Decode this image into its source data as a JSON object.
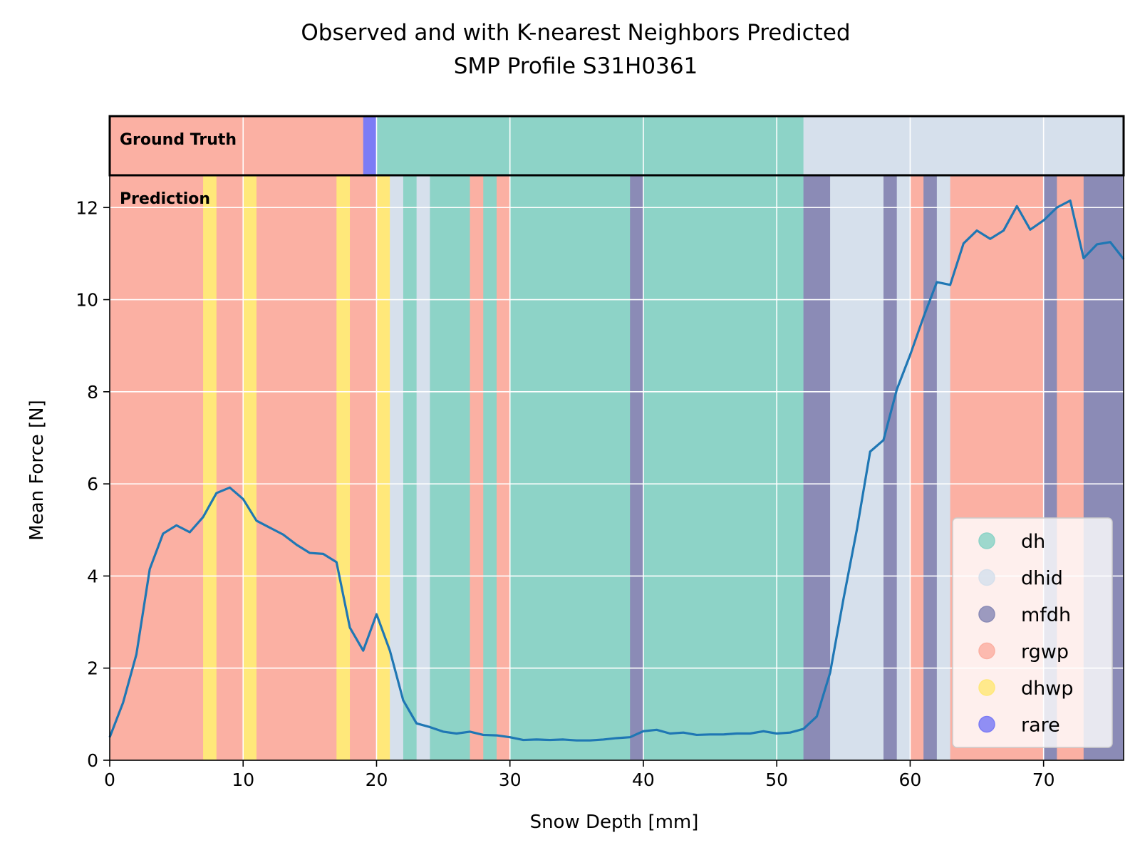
{
  "chart_data": {
    "type": "line",
    "title": "Observed and with K-nearest Neighbors Predicted",
    "subtitle": "SMP Profile S31H0361",
    "xlabel": "Snow Depth [mm]",
    "ylabel": "Mean Force [N]",
    "xlim": [
      0,
      76
    ],
    "ylim": [
      0,
      12.7
    ],
    "xticks": [
      "0",
      "10",
      "20",
      "30",
      "40",
      "50",
      "60",
      "70"
    ],
    "yticks": [
      "0",
      "2",
      "4",
      "6",
      "8",
      "10",
      "12"
    ],
    "grid": true,
    "legend_position": "lower-right",
    "panel_labels": {
      "ground_truth": "Ground Truth",
      "prediction": "Prediction"
    },
    "classes": [
      {
        "name": "dh",
        "color": "#8dd3c7"
      },
      {
        "name": "dhid",
        "color": "#d6e0ec"
      },
      {
        "name": "mfdh",
        "color": "#8b8bb6"
      },
      {
        "name": "rgwp",
        "color": "#fbb0a3"
      },
      {
        "name": "dhwp",
        "color": "#ffe87a"
      },
      {
        "name": "rare",
        "color": "#7c7cf5"
      }
    ],
    "ground_truth_segments": [
      {
        "start": 0,
        "end": 19,
        "class": "rgwp"
      },
      {
        "start": 19,
        "end": 20,
        "class": "rare"
      },
      {
        "start": 20,
        "end": 52,
        "class": "dh"
      },
      {
        "start": 52,
        "end": 76,
        "class": "dhid"
      }
    ],
    "prediction_segments": [
      {
        "start": 0,
        "end": 7,
        "class": "rgwp"
      },
      {
        "start": 7,
        "end": 8,
        "class": "dhwp"
      },
      {
        "start": 8,
        "end": 10,
        "class": "rgwp"
      },
      {
        "start": 10,
        "end": 11,
        "class": "dhwp"
      },
      {
        "start": 11,
        "end": 17,
        "class": "rgwp"
      },
      {
        "start": 17,
        "end": 18,
        "class": "dhwp"
      },
      {
        "start": 18,
        "end": 20,
        "class": "rgwp"
      },
      {
        "start": 20,
        "end": 21,
        "class": "dhwp"
      },
      {
        "start": 21,
        "end": 22,
        "class": "dhid"
      },
      {
        "start": 22,
        "end": 23,
        "class": "dh"
      },
      {
        "start": 23,
        "end": 24,
        "class": "dhid"
      },
      {
        "start": 24,
        "end": 27,
        "class": "dh"
      },
      {
        "start": 27,
        "end": 28,
        "class": "rgwp"
      },
      {
        "start": 28,
        "end": 29,
        "class": "dh"
      },
      {
        "start": 29,
        "end": 30,
        "class": "rgwp"
      },
      {
        "start": 30,
        "end": 39,
        "class": "dh"
      },
      {
        "start": 39,
        "end": 40,
        "class": "mfdh"
      },
      {
        "start": 40,
        "end": 52,
        "class": "dh"
      },
      {
        "start": 52,
        "end": 54,
        "class": "mfdh"
      },
      {
        "start": 54,
        "end": 58,
        "class": "dhid"
      },
      {
        "start": 58,
        "end": 59,
        "class": "mfdh"
      },
      {
        "start": 59,
        "end": 60,
        "class": "dhid"
      },
      {
        "start": 60,
        "end": 61,
        "class": "rgwp"
      },
      {
        "start": 61,
        "end": 62,
        "class": "mfdh"
      },
      {
        "start": 62,
        "end": 63,
        "class": "dhid"
      },
      {
        "start": 63,
        "end": 70,
        "class": "rgwp"
      },
      {
        "start": 70,
        "end": 71,
        "class": "mfdh"
      },
      {
        "start": 71,
        "end": 73,
        "class": "rgwp"
      },
      {
        "start": 73,
        "end": 76,
        "class": "mfdh"
      }
    ],
    "series": [
      {
        "color": "#1f77b4",
        "x": [
          0,
          1,
          2,
          3,
          4,
          5,
          6,
          7,
          8,
          9,
          10,
          11,
          12,
          13,
          14,
          15,
          16,
          17,
          18,
          19,
          20,
          21,
          22,
          23,
          24,
          25,
          26,
          27,
          28,
          29,
          30,
          31,
          32,
          33,
          34,
          35,
          36,
          37,
          38,
          39,
          40,
          41,
          42,
          43,
          44,
          45,
          46,
          47,
          48,
          49,
          50,
          51,
          52,
          53,
          54,
          55,
          56,
          57,
          58,
          59,
          60,
          61,
          62,
          63,
          64,
          65,
          66,
          67,
          68,
          69,
          70,
          71,
          72,
          73,
          74,
          75,
          76
        ],
        "y": [
          0.5,
          1.25,
          2.3,
          4.15,
          4.92,
          5.1,
          4.95,
          5.28,
          5.8,
          5.92,
          5.67,
          5.2,
          5.05,
          4.9,
          4.68,
          4.5,
          4.48,
          4.3,
          2.88,
          2.38,
          3.17,
          2.38,
          1.3,
          0.8,
          0.72,
          0.62,
          0.58,
          0.62,
          0.55,
          0.54,
          0.5,
          0.44,
          0.45,
          0.44,
          0.45,
          0.43,
          0.43,
          0.45,
          0.48,
          0.5,
          0.63,
          0.66,
          0.58,
          0.6,
          0.55,
          0.56,
          0.56,
          0.58,
          0.58,
          0.63,
          0.58,
          0.6,
          0.68,
          0.95,
          1.9,
          3.5,
          5.0,
          6.7,
          6.95,
          8.05,
          8.8,
          9.62,
          10.38,
          10.32,
          11.22,
          11.5,
          11.32,
          11.5,
          12.03,
          11.52,
          11.72,
          12.0,
          12.15,
          10.9,
          11.2,
          11.25,
          10.88
        ]
      }
    ]
  }
}
